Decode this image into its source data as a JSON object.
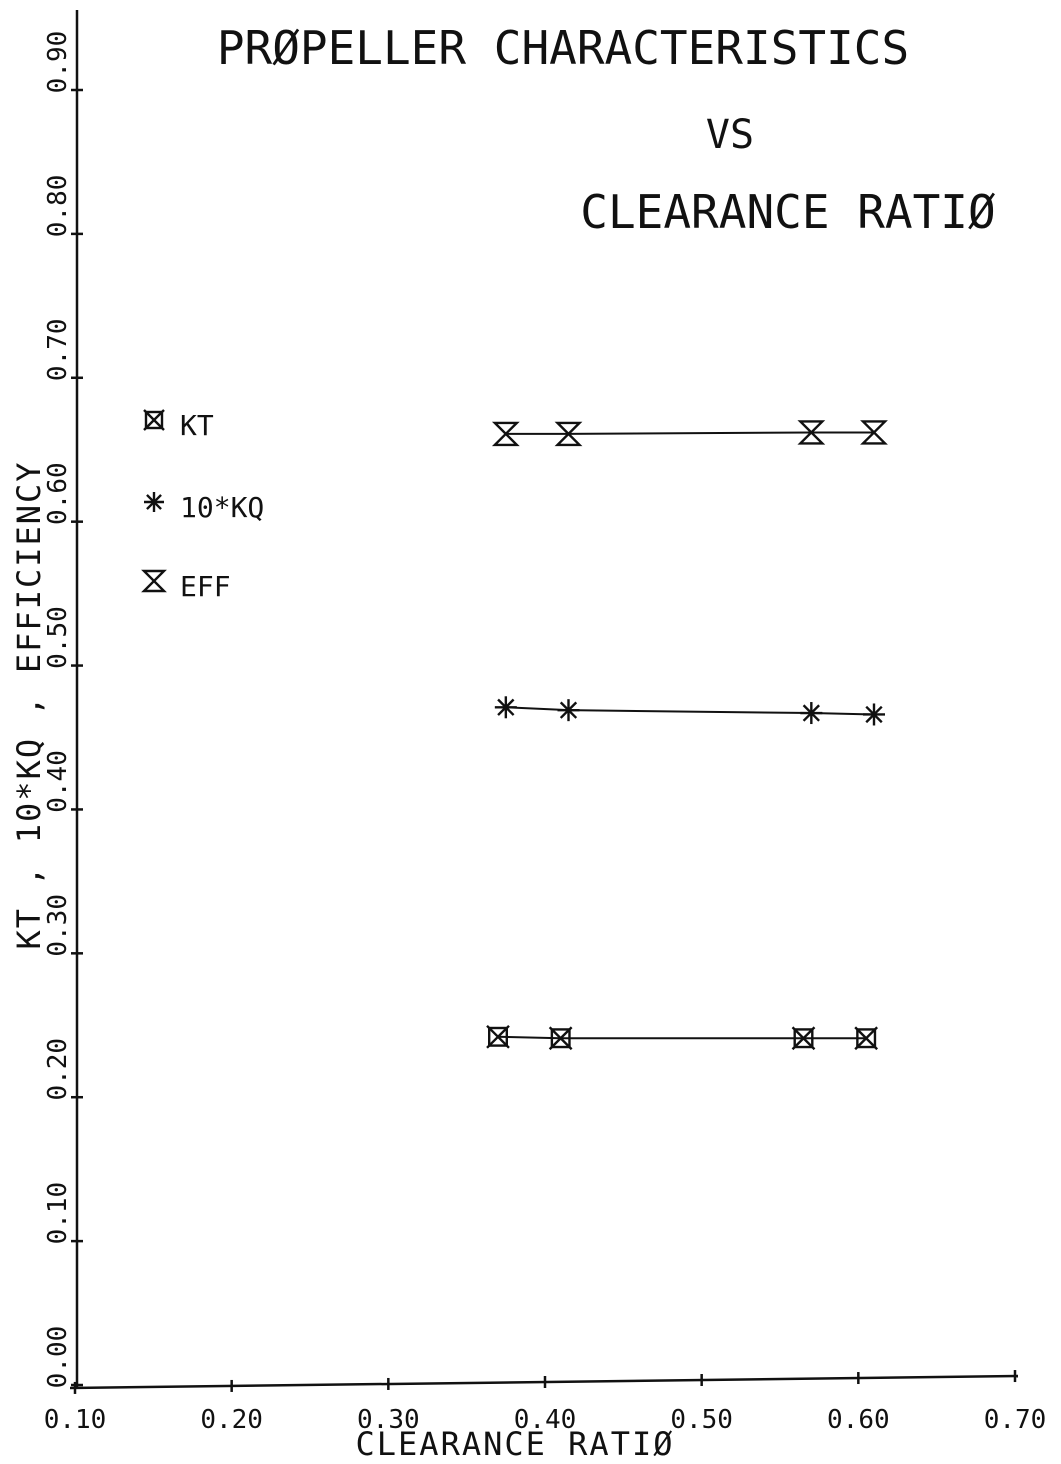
{
  "chart_data": {
    "type": "line",
    "title": [
      "PRØPELLER CHARACTERISTICS",
      "VS",
      "CLEARANCE RATIØ"
    ],
    "xlabel": "CLEARANCE RATIØ",
    "ylabel": "KT , 10*KQ , EFFICIENCY",
    "xlim": [
      0.1,
      0.7
    ],
    "ylim": [
      0.0,
      0.9
    ],
    "x_ticks": [
      "0.10",
      "0.20",
      "0.30",
      "0.40",
      "0.50",
      "0.60",
      "0.70"
    ],
    "y_ticks": [
      "0.00",
      "0.10",
      "0.20",
      "0.30",
      "0.40",
      "0.50",
      "0.60",
      "0.70",
      "0.80",
      "0.90"
    ],
    "grid": false,
    "legend_position": "left",
    "series": [
      {
        "name": "KT",
        "marker": "kt",
        "x": [
          0.37,
          0.41,
          0.565,
          0.605
        ],
        "y": [
          0.242,
          0.241,
          0.241,
          0.241
        ]
      },
      {
        "name": "10*KQ",
        "marker": "kq",
        "x": [
          0.375,
          0.415,
          0.57,
          0.61
        ],
        "y": [
          0.471,
          0.469,
          0.467,
          0.466
        ]
      },
      {
        "name": "EFF",
        "marker": "eff",
        "x": [
          0.375,
          0.415,
          0.57,
          0.61
        ],
        "y": [
          0.661,
          0.661,
          0.662,
          0.662
        ]
      }
    ]
  }
}
